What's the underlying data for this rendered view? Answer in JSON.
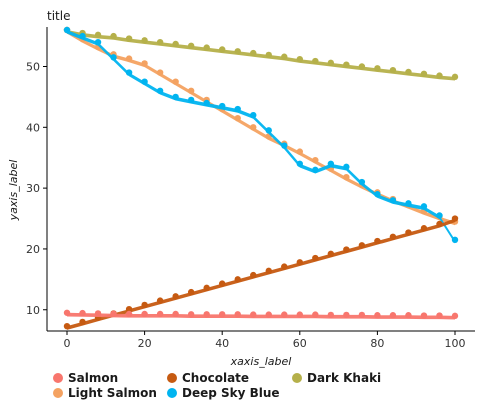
{
  "chart_data": {
    "type": "scatter",
    "title": "title",
    "xlabel": "xaxis_label",
    "ylabel": "yaxis_label",
    "xlim": [
      0,
      100
    ],
    "ylim": [
      7,
      56
    ],
    "x_ticks": [
      0,
      20,
      40,
      60,
      80,
      100
    ],
    "y_ticks": [
      10,
      20,
      30,
      40,
      50
    ],
    "grid": false,
    "legend_position": "bottom",
    "x": [
      0,
      4,
      8,
      12,
      16,
      20,
      24,
      28,
      32,
      36,
      40,
      44,
      48,
      52,
      56,
      60,
      64,
      68,
      72,
      76,
      80,
      84,
      88,
      92,
      96,
      100
    ],
    "series": [
      {
        "name": "Salmon",
        "color": "#F8766D",
        "values": [
          9.5,
          9.45,
          9.4,
          9.35,
          9.3,
          9.3,
          9.3,
          9.3,
          9.25,
          9.25,
          9.25,
          9.25,
          9.2,
          9.2,
          9.2,
          9.2,
          9.2,
          9.15,
          9.15,
          9.15,
          9.1,
          9.1,
          9.1,
          9.05,
          9.05,
          9.0
        ]
      },
      {
        "name": "Chocolate",
        "color": "#C65A11",
        "values": [
          7.3,
          8.0,
          8.7,
          9.4,
          10.1,
          10.8,
          11.5,
          12.2,
          12.9,
          13.6,
          14.3,
          15.0,
          15.7,
          16.4,
          17.1,
          17.8,
          18.5,
          19.2,
          19.9,
          20.6,
          21.3,
          22.0,
          22.7,
          23.4,
          24.1,
          25.0
        ]
      },
      {
        "name": "Dark Khaki",
        "color": "#B5B04A",
        "values": [
          56.0,
          55.5,
          55.2,
          55.0,
          54.6,
          54.3,
          54.0,
          53.7,
          53.4,
          53.1,
          52.8,
          52.5,
          52.2,
          51.9,
          51.6,
          51.2,
          50.9,
          50.6,
          50.3,
          50.0,
          49.7,
          49.4,
          49.1,
          48.8,
          48.5,
          48.3
        ]
      },
      {
        "name": "Light Salmon",
        "color": "#F4A261",
        "values": [
          56.0,
          54.5,
          53.2,
          52.0,
          51.3,
          50.5,
          49.0,
          47.5,
          46.0,
          44.5,
          43.0,
          41.5,
          40.0,
          38.5,
          37.3,
          36.0,
          34.6,
          33.2,
          31.8,
          30.5,
          29.3,
          28.2,
          27.2,
          26.2,
          25.3,
          24.5
        ]
      },
      {
        "name": "Deep Sky Blue",
        "color": "#00B4F0",
        "values": [
          56.0,
          55.0,
          54.0,
          51.5,
          49.0,
          47.5,
          46.0,
          45.0,
          44.5,
          44.0,
          43.5,
          43.0,
          42.0,
          39.5,
          37.0,
          34.0,
          33.0,
          34.0,
          33.5,
          31.0,
          29.0,
          28.0,
          27.5,
          27.0,
          25.5,
          21.5
        ]
      }
    ]
  }
}
